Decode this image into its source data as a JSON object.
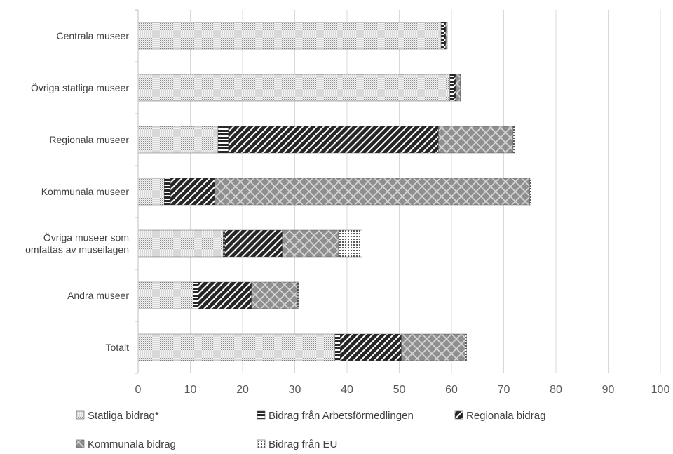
{
  "chart_data": {
    "type": "bar",
    "orientation": "horizontal",
    "stacked": true,
    "categories": [
      "Centrala museer",
      "Övriga statliga museer",
      "Regionala museer",
      "Kommunala museer",
      "Övriga museer som omfattas av museilagen",
      "Andra museer",
      "Totalt"
    ],
    "category_lines": [
      [
        "Centrala museer"
      ],
      [
        "Övriga statliga museer"
      ],
      [
        "Regionala museer"
      ],
      [
        "Kommunala museer"
      ],
      [
        "Övriga museer som",
        "omfattas av museilagen"
      ],
      [
        "Andra museer"
      ],
      [
        "Totalt"
      ]
    ],
    "series": [
      {
        "name": "Statliga bidrag*",
        "pattern": "fine-check",
        "values": [
          58.0,
          59.7,
          15.3,
          5.0,
          16.3,
          10.5,
          37.7
        ]
      },
      {
        "name": "Bidrag från Arbetsförmedlingen",
        "pattern": "horizontal-stripe",
        "values": [
          0.6,
          0.8,
          2.0,
          1.2,
          0.3,
          1.0,
          1.0
        ]
      },
      {
        "name": "Regionala bidrag",
        "pattern": "diagonal-stripe",
        "values": [
          0.3,
          0.3,
          40.2,
          8.5,
          11.0,
          10.2,
          11.7
        ]
      },
      {
        "name": "Kommunala bidrag",
        "pattern": "diamond-lattice",
        "values": [
          0.2,
          0.9,
          14.3,
          60.3,
          10.8,
          8.8,
          12.2
        ]
      },
      {
        "name": "Bidrag från EU",
        "pattern": "dotted-grid",
        "values": [
          0.1,
          0.1,
          0.3,
          0.2,
          4.5,
          0.2,
          0.3
        ]
      }
    ],
    "xlim": [
      0,
      100
    ],
    "xticks": [
      0,
      10,
      20,
      30,
      40,
      50,
      60,
      70,
      80,
      90,
      100
    ],
    "grid": true,
    "legend_position": "bottom",
    "title": "",
    "xlabel": "",
    "ylabel": "",
    "colors": {
      "dark": "#404040",
      "mid": "#7f7f7f",
      "light": "#d9d9d9",
      "grid": "#d9d9d9",
      "axis": "#bfbfbf"
    }
  }
}
